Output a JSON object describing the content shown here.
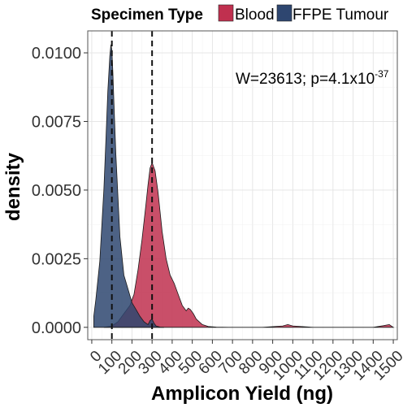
{
  "chart_data": {
    "type": "area",
    "xlabel": "Amplicon Yield (ng)",
    "ylabel": "density",
    "xlim": [
      -20,
      1520
    ],
    "ylim": [
      -0.00045,
      0.0108
    ],
    "x_ticks": [
      0,
      100,
      200,
      300,
      400,
      500,
      600,
      700,
      800,
      900,
      1000,
      1100,
      1200,
      1300,
      1400,
      1500
    ],
    "y_ticks": [
      0,
      0.0025,
      0.005,
      0.0075,
      0.01
    ],
    "y_tick_labels": [
      "0.0000",
      "0.0025",
      "0.0050",
      "0.0075",
      "0.0100"
    ],
    "grid": true,
    "legend": {
      "title": "Specimen Type",
      "position": "top",
      "entries": [
        {
          "label": "Blood",
          "color": "#c0304f"
        },
        {
          "label": "FFPE Tumour",
          "color": "#2e4670"
        }
      ]
    },
    "annotation": {
      "prefix": "W=23613; p=4.1x10",
      "exponent": "-37"
    },
    "vlines": [
      {
        "x": 100,
        "style": "dashed"
      },
      {
        "x": 300,
        "style": "dashed"
      }
    ],
    "series": [
      {
        "name": "Blood",
        "color": "#c0304f",
        "x": [
          60,
          100,
          130,
          160,
          190,
          210,
          230,
          250,
          270,
          280,
          290,
          300,
          315,
          330,
          350,
          370,
          390,
          410,
          430,
          450,
          470,
          480,
          490,
          505,
          520,
          550,
          580,
          620,
          680,
          750,
          850,
          950,
          975,
          1000,
          1100,
          1200,
          1300,
          1400,
          1450,
          1480,
          1500
        ],
        "y": [
          0,
          5e-05,
          0.0002,
          0.0005,
          0.0008,
          0.0012,
          0.0021,
          0.0032,
          0.0045,
          0.0052,
          0.0058,
          0.006,
          0.0057,
          0.0049,
          0.0035,
          0.0025,
          0.0019,
          0.0016,
          0.0012,
          0.0008,
          0.0006,
          0.0007,
          0.00065,
          0.0005,
          0.0003,
          0.0001,
          3e-05,
          1e-05,
          0,
          0,
          0,
          5e-05,
          0.0001,
          5e-05,
          0,
          0,
          0,
          0,
          6e-05,
          0.0001,
          0
        ]
      },
      {
        "name": "FFPE Tumour",
        "color": "#2e4670",
        "x": [
          10,
          20,
          40,
          60,
          70,
          80,
          90,
          95,
          100,
          105,
          110,
          120,
          140,
          160,
          180,
          200,
          220,
          240,
          260,
          280,
          290,
          300,
          310,
          320,
          340,
          360
        ],
        "y": [
          0.0004,
          0.001,
          0.0024,
          0.005,
          0.0068,
          0.0086,
          0.0099,
          0.0103,
          0.0101,
          0.0093,
          0.0082,
          0.0063,
          0.0033,
          0.0019,
          0.0014,
          0.0009,
          0.00065,
          0.0004,
          0.0002,
          0.0001,
          0.00025,
          0.0003,
          0.00015,
          5e-05,
          1e-05,
          0
        ]
      }
    ]
  }
}
